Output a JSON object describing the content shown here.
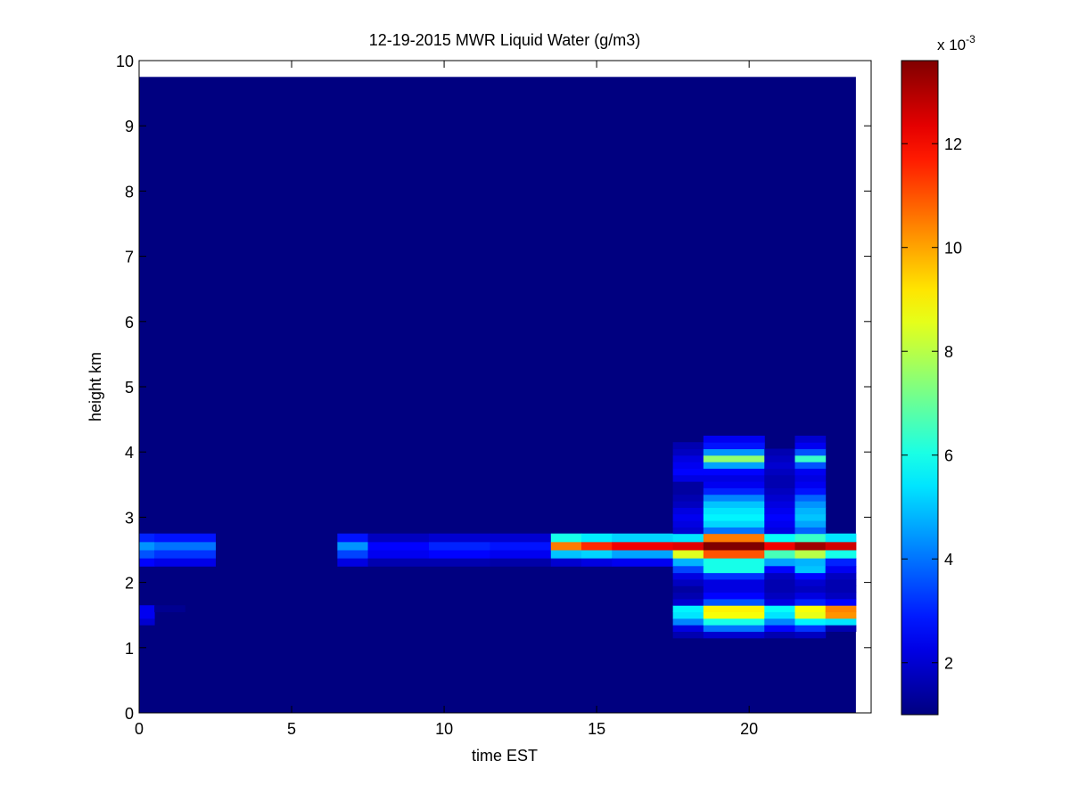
{
  "chart_data": {
    "type": "heatmap",
    "title": "12-19-2015 MWR Liquid Water (g/m3)",
    "xlabel": "time EST",
    "ylabel": "height km",
    "xlim": [
      0,
      24
    ],
    "ylim": [
      0,
      10
    ],
    "xticks": [
      0,
      5,
      10,
      15,
      20
    ],
    "yticks": [
      0,
      1,
      2,
      3,
      4,
      5,
      6,
      7,
      8,
      9,
      10
    ],
    "data_extent": {
      "x": [
        0,
        23.5
      ],
      "y": [
        0,
        9.75
      ]
    },
    "background_value": 1.0,
    "colorbar": {
      "colormap": "jet",
      "range": [
        1.0,
        13.6
      ],
      "ticks": [
        2,
        4,
        6,
        8,
        10,
        12
      ],
      "exponent_label": "x 10",
      "exponent_value": "-3"
    },
    "cells": [
      {
        "x0": 0,
        "x1": 0.5,
        "y0": 2.25,
        "y1": 2.75,
        "v": [
          2.6,
          3.6,
          4.4,
          3.0
        ]
      },
      {
        "x0": 0.5,
        "x1": 2.5,
        "y0": 2.25,
        "y1": 2.75,
        "v": [
          2.3,
          3.2,
          4.0,
          2.8
        ]
      },
      {
        "x0": 0,
        "x1": 0.5,
        "y0": 1.35,
        "y1": 1.65,
        "v": [
          2.0,
          2.4,
          2.4
        ]
      },
      {
        "x0": 0.5,
        "x1": 1.5,
        "y0": 1.55,
        "y1": 1.65,
        "v": [
          1.2
        ]
      },
      {
        "x0": 6.5,
        "x1": 7.5,
        "y0": 2.25,
        "y1": 2.75,
        "v": [
          2.2,
          3.4,
          4.4,
          2.8
        ]
      },
      {
        "x0": 7.5,
        "x1": 9.5,
        "y0": 2.25,
        "y1": 2.75,
        "v": [
          1.6,
          2.4,
          2.6,
          1.8
        ]
      },
      {
        "x0": 9.5,
        "x1": 11.5,
        "y0": 2.25,
        "y1": 2.75,
        "v": [
          1.6,
          2.6,
          3.0,
          2.0
        ]
      },
      {
        "x0": 11.5,
        "x1": 13.5,
        "y0": 2.25,
        "y1": 2.75,
        "v": [
          1.5,
          2.4,
          2.8,
          2.0
        ]
      },
      {
        "x0": 13.5,
        "x1": 14.5,
        "y0": 2.25,
        "y1": 2.75,
        "v": [
          2.0,
          5.0,
          10.5,
          6.0
        ]
      },
      {
        "x0": 14.5,
        "x1": 15.5,
        "y0": 2.25,
        "y1": 2.75,
        "v": [
          2.2,
          5.2,
          11.5,
          5.5
        ]
      },
      {
        "x0": 15.5,
        "x1": 17.5,
        "y0": 2.25,
        "y1": 2.75,
        "v": [
          2.4,
          4.6,
          12.2,
          5.2
        ]
      },
      {
        "x0": 17.5,
        "x1": 18.5,
        "y0": 2.25,
        "y1": 2.75,
        "v": [
          4.8,
          8.5,
          12.4,
          5.4
        ]
      },
      {
        "x0": 18.5,
        "x1": 20.5,
        "y0": 2.25,
        "y1": 2.75,
        "v": [
          6.0,
          11.0,
          13.6,
          10.5
        ]
      },
      {
        "x0": 20.5,
        "x1": 21.5,
        "y0": 2.25,
        "y1": 2.75,
        "v": [
          4.6,
          6.6,
          12.2,
          5.8
        ]
      },
      {
        "x0": 21.5,
        "x1": 22.5,
        "y0": 2.25,
        "y1": 2.75,
        "v": [
          4.8,
          8.0,
          13.2,
          6.4
        ]
      },
      {
        "x0": 22.5,
        "x1": 23.5,
        "y0": 2.25,
        "y1": 2.75,
        "v": [
          3.0,
          6.0,
          12.6,
          5.4
        ]
      },
      {
        "x0": 17.5,
        "x1": 18.5,
        "y0": 1.15,
        "y1": 2.25,
        "v": [
          1.6,
          2.2,
          4.2,
          5.4,
          5.6,
          2.0,
          1.6,
          1.4,
          1.8,
          2.2,
          3.4
        ]
      },
      {
        "x0": 17.5,
        "x1": 18.5,
        "y0": 2.75,
        "y1": 4.15,
        "v": [
          2.0,
          2.2,
          2.4,
          2.2,
          1.8,
          1.6,
          1.4,
          1.4,
          2.2,
          2.6,
          2.4,
          2.2,
          1.8,
          1.6
        ]
      },
      {
        "x0": 18.5,
        "x1": 20.5,
        "y0": 1.15,
        "y1": 2.25,
        "v": [
          2.0,
          4.0,
          6.0,
          8.8,
          9.0,
          3.6,
          2.6,
          2.2,
          2.2,
          3.2,
          6.0
        ]
      },
      {
        "x0": 18.5,
        "x1": 20.5,
        "y0": 2.75,
        "y1": 4.25,
        "v": [
          4.0,
          5.2,
          5.6,
          5.4,
          5.0,
          4.2,
          3.0,
          2.4,
          2.2,
          2.6,
          4.6,
          7.5,
          4.4,
          2.8,
          2.4
        ]
      },
      {
        "x0": 20.5,
        "x1": 21.5,
        "y0": 1.15,
        "y1": 2.25,
        "v": [
          1.6,
          2.6,
          4.2,
          5.4,
          5.8,
          2.2,
          1.8,
          1.6,
          1.6,
          1.8,
          2.6
        ]
      },
      {
        "x0": 20.5,
        "x1": 21.5,
        "y0": 2.75,
        "y1": 4.05,
        "v": [
          2.2,
          2.4,
          2.6,
          2.4,
          2.2,
          2.0,
          1.8,
          1.6,
          1.6,
          1.8,
          2.0,
          1.8,
          1.6
        ]
      },
      {
        "x0": 21.5,
        "x1": 22.5,
        "y0": 1.15,
        "y1": 2.25,
        "v": [
          1.8,
          3.2,
          5.6,
          8.6,
          8.8,
          3.0,
          2.2,
          1.8,
          2.0,
          2.6,
          5.0
        ]
      },
      {
        "x0": 21.5,
        "x1": 22.5,
        "y0": 2.75,
        "y1": 4.25,
        "v": [
          3.8,
          4.6,
          5.0,
          4.8,
          4.4,
          3.8,
          2.8,
          2.4,
          2.2,
          2.4,
          3.6,
          6.4,
          3.6,
          2.4,
          2.0
        ]
      },
      {
        "x0": 22.5,
        "x1": 23.5,
        "y0": 1.25,
        "y1": 2.25,
        "v": [
          1.6,
          5.4,
          10.2,
          10.4,
          2.6,
          1.8,
          1.6,
          1.6,
          1.8,
          2.4
        ]
      }
    ]
  }
}
